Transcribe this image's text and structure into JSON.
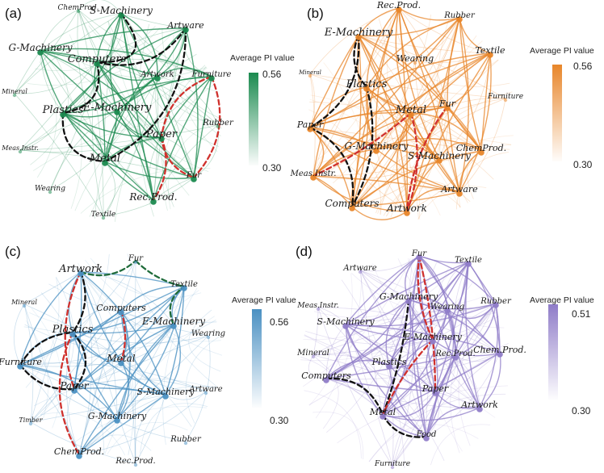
{
  "figure": {
    "panels": [
      {
        "letter": "(a)",
        "color": "#1b8a4f",
        "colorbar": {
          "title": "Average PI value",
          "max": "0.56",
          "min": "0.30"
        },
        "nodes": [
          {
            "id": "ChemProd",
            "label": "ChemProd."
          },
          {
            "id": "SMach",
            "label": "S-Machinery"
          },
          {
            "id": "Artware",
            "label": "Artware"
          },
          {
            "id": "GMach",
            "label": "G-Machinery"
          },
          {
            "id": "Computers",
            "label": "Computers"
          },
          {
            "id": "Artwork",
            "label": "Artwork"
          },
          {
            "id": "Furniture",
            "label": "Furniture"
          },
          {
            "id": "Mineral",
            "label": "Mineral"
          },
          {
            "id": "Plastics",
            "label": "Plastics"
          },
          {
            "id": "EMach",
            "label": "E-Machinery"
          },
          {
            "id": "Rubber",
            "label": "Rubber"
          },
          {
            "id": "Paper",
            "label": "Paper"
          },
          {
            "id": "MeasInstr",
            "label": "Meas.Instr."
          },
          {
            "id": "Metal",
            "label": "Metal"
          },
          {
            "id": "Fur",
            "label": "Fur"
          },
          {
            "id": "Wearing",
            "label": "Wearing"
          },
          {
            "id": "RecProd",
            "label": "Rec.Prod."
          },
          {
            "id": "Textile",
            "label": "Textile"
          }
        ]
      },
      {
        "letter": "(b)",
        "color": "#e8862a",
        "colorbar": {
          "title": "Average PI value",
          "max": "0.56",
          "min": "0.30"
        },
        "nodes": [
          {
            "id": "RecProd",
            "label": "Rec.Prod."
          },
          {
            "id": "Rubber",
            "label": "Rubber"
          },
          {
            "id": "EMach",
            "label": "E-Machinery"
          },
          {
            "id": "Textile",
            "label": "Textile"
          },
          {
            "id": "Wearing",
            "label": "Wearing"
          },
          {
            "id": "Mineral",
            "label": "Mineral"
          },
          {
            "id": "Plastics",
            "label": "Plastics"
          },
          {
            "id": "Furniture",
            "label": "Furniture"
          },
          {
            "id": "Metal",
            "label": "Metal"
          },
          {
            "id": "Fur",
            "label": "Fur"
          },
          {
            "id": "Paper",
            "label": "Paper"
          },
          {
            "id": "GMach",
            "label": "G-Machinery"
          },
          {
            "id": "SMach",
            "label": "S-Machinery"
          },
          {
            "id": "ChemProd",
            "label": "ChemProd."
          },
          {
            "id": "MeasInstr",
            "label": "Meas.Instr."
          },
          {
            "id": "Artware",
            "label": "Artware"
          },
          {
            "id": "Computers",
            "label": "Computers"
          },
          {
            "id": "Artwork",
            "label": "Artwork"
          }
        ]
      },
      {
        "letter": "(c)",
        "color": "#4a90c2",
        "colorbar": {
          "title": "Average PI value",
          "max": "0.56",
          "min": "0.30"
        },
        "nodes": [
          {
            "id": "Fur",
            "label": "Fur"
          },
          {
            "id": "Artwork",
            "label": "Artwork"
          },
          {
            "id": "Textile",
            "label": "Textile"
          },
          {
            "id": "Mineral",
            "label": "Mineral"
          },
          {
            "id": "Computers",
            "label": "Computers"
          },
          {
            "id": "EMach",
            "label": "E-Machinery"
          },
          {
            "id": "Wearing",
            "label": "Wearing"
          },
          {
            "id": "Plastics",
            "label": "Plastics"
          },
          {
            "id": "Metal",
            "label": "Metal"
          },
          {
            "id": "Furniture",
            "label": "Furniture"
          },
          {
            "id": "Artware",
            "label": "Artware"
          },
          {
            "id": "Paper",
            "label": "Paper"
          },
          {
            "id": "SMach",
            "label": "S-Machinery"
          },
          {
            "id": "GMach",
            "label": "G-Machinery"
          },
          {
            "id": "Timber",
            "label": "Timber"
          },
          {
            "id": "Rubber",
            "label": "Rubber"
          },
          {
            "id": "ChemProd",
            "label": "ChemProd."
          },
          {
            "id": "RecProd",
            "label": "Rec.Prod."
          }
        ]
      },
      {
        "letter": "(d)",
        "color": "#8f7cc8",
        "colorbar": {
          "title": "Average PI value",
          "max": "0.51",
          "min": "0.30"
        },
        "nodes": [
          {
            "id": "Fur",
            "label": "Fur"
          },
          {
            "id": "Artware",
            "label": "Artware"
          },
          {
            "id": "Textile",
            "label": "Textile"
          },
          {
            "id": "GMach",
            "label": "G-Machinery"
          },
          {
            "id": "MeasInstr",
            "label": "Meas.Instr."
          },
          {
            "id": "Wearing",
            "label": "Wearing"
          },
          {
            "id": "Rubber",
            "label": "Rubber"
          },
          {
            "id": "SMach",
            "label": "S-Machinery"
          },
          {
            "id": "EMach",
            "label": "E-Machinery"
          },
          {
            "id": "Mineral",
            "label": "Mineral"
          },
          {
            "id": "RecProd",
            "label": "Rec.Prod."
          },
          {
            "id": "ChemProd",
            "label": "Chem.Prod."
          },
          {
            "id": "Plastics",
            "label": "Plastics"
          },
          {
            "id": "Computers",
            "label": "Computers"
          },
          {
            "id": "Paper",
            "label": "Paper"
          },
          {
            "id": "Artwork",
            "label": "Artwork"
          },
          {
            "id": "Metal",
            "label": "Metal"
          },
          {
            "id": "Food",
            "label": "Food"
          },
          {
            "id": "Furniture",
            "label": "Furniture"
          }
        ]
      }
    ]
  }
}
